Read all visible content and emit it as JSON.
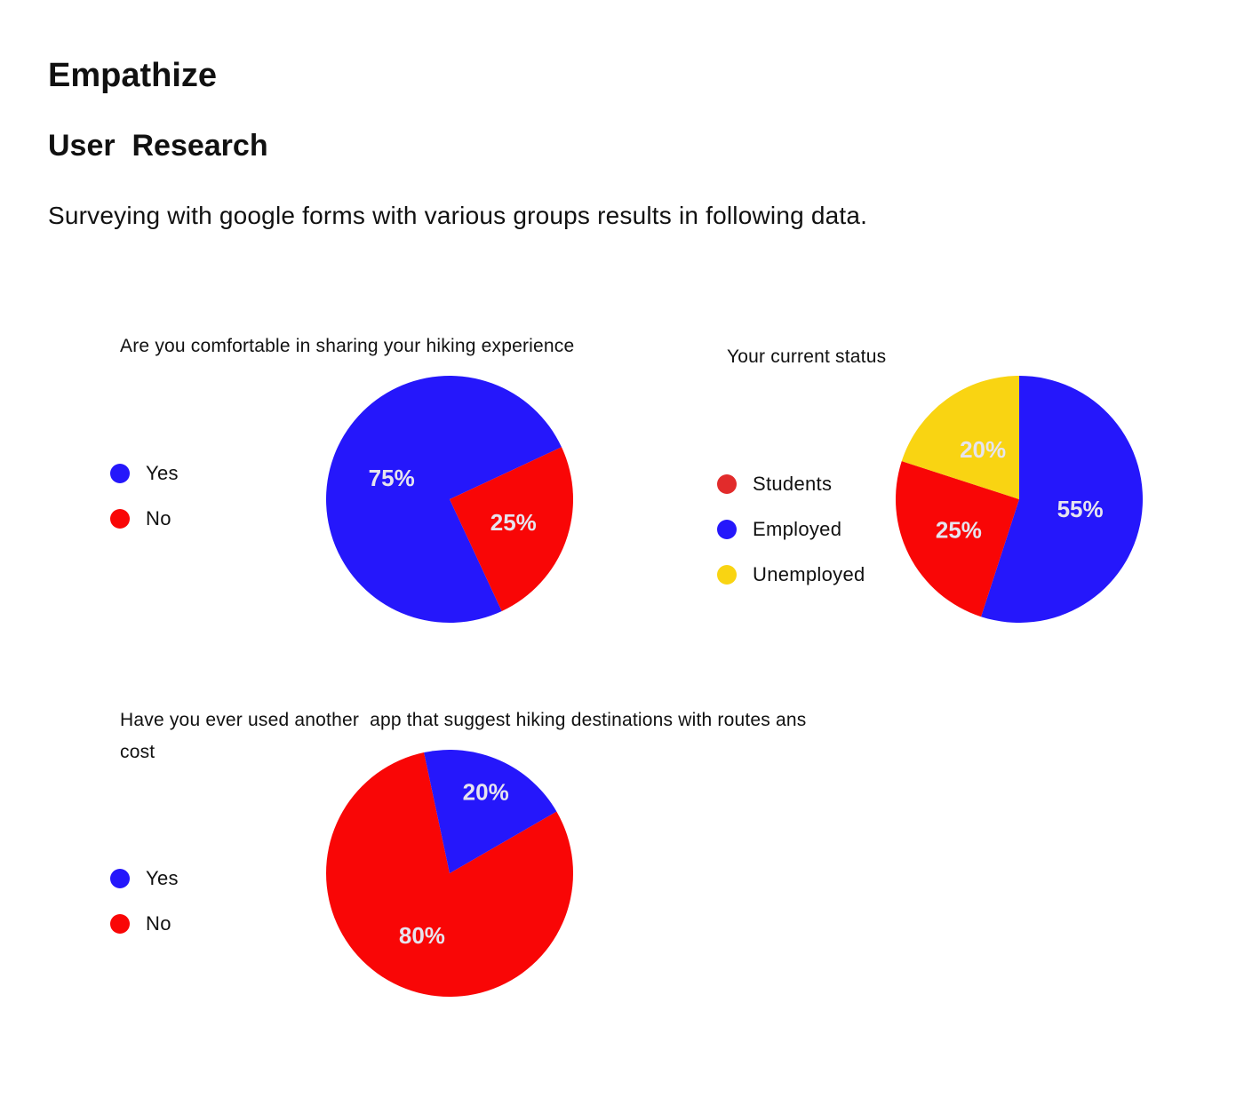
{
  "page": {
    "title": "Empathize",
    "section_title": "User  Research",
    "intro": "Surveying with google forms with various groups results in following data."
  },
  "colors": {
    "blue": "#2517fb",
    "red": "#f90606",
    "yellow": "#f9d412",
    "students_dot": "#e22b2b"
  },
  "chart_data": [
    {
      "type": "pie",
      "title": "Are you comfortable in sharing your hiking experience",
      "legend": [
        {
          "label": "Yes",
          "color": "#2517fb"
        },
        {
          "label": "No",
          "color": "#f90606"
        }
      ],
      "slices": [
        {
          "label": "Yes",
          "value": 75,
          "display": "75%",
          "color": "#2517fb"
        },
        {
          "label": "No",
          "value": 25,
          "display": "25%",
          "color": "#f90606"
        }
      ],
      "legend_position": "left"
    },
    {
      "type": "pie",
      "title": "Your current status",
      "legend": [
        {
          "label": "Students",
          "color": "#e22b2b"
        },
        {
          "label": "Employed",
          "color": "#2517fb"
        },
        {
          "label": "Unemployed",
          "color": "#f9d412"
        }
      ],
      "slices": [
        {
          "label": "Employed",
          "value": 55,
          "display": "55%",
          "color": "#2517fb"
        },
        {
          "label": "Students",
          "value": 25,
          "display": "25%",
          "color": "#f90606"
        },
        {
          "label": "Unemployed",
          "value": 20,
          "display": "20%",
          "color": "#f9d412"
        }
      ],
      "legend_position": "left"
    },
    {
      "type": "pie",
      "title": "Have you ever used another  app that suggest hiking destinations with routes ans cost",
      "legend": [
        {
          "label": "Yes",
          "color": "#2517fb"
        },
        {
          "label": "No",
          "color": "#f90606"
        }
      ],
      "slices": [
        {
          "label": "No",
          "value": 80,
          "display": "80%",
          "color": "#f90606"
        },
        {
          "label": "Yes",
          "value": 20,
          "display": "20%",
          "color": "#2517fb"
        }
      ],
      "legend_position": "left"
    }
  ]
}
